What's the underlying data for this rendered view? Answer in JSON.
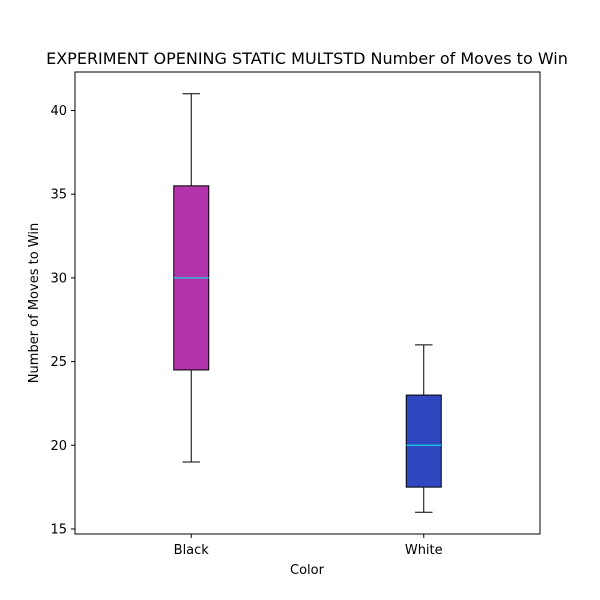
{
  "chart_data": {
    "type": "boxplot",
    "title": "EXPERIMENT OPENING STATIC MULTSTD Number of Moves to Win",
    "xlabel": "Color",
    "ylabel": "Number of Moves to Win",
    "categories": [
      "Black",
      "White"
    ],
    "boxes": [
      {
        "category": "Black",
        "whisker_low": 19,
        "q1": 24.5,
        "median": 30,
        "q3": 35.5,
        "whisker_high": 41,
        "color": "#b233aa"
      },
      {
        "category": "White",
        "whisker_low": 16,
        "q1": 17.5,
        "median": 20,
        "q3": 23,
        "whisker_high": 26,
        "color": "#2f47bf"
      }
    ],
    "median_color": "#17d4ee",
    "yticks": [
      15,
      20,
      25,
      30,
      35,
      40
    ],
    "ylim": [
      14.7,
      42.3
    ],
    "grid": false,
    "legend": "none"
  }
}
